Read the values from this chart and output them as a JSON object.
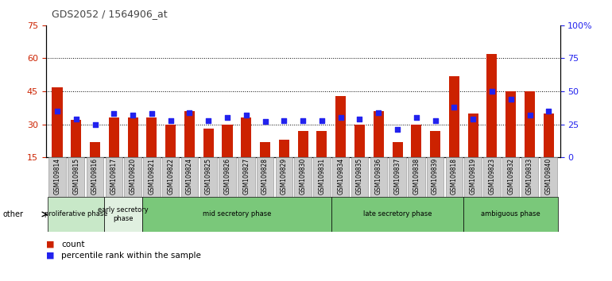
{
  "title": "GDS2052 / 1564906_at",
  "samples": [
    "GSM109814",
    "GSM109815",
    "GSM109816",
    "GSM109817",
    "GSM109820",
    "GSM109821",
    "GSM109822",
    "GSM109824",
    "GSM109825",
    "GSM109826",
    "GSM109827",
    "GSM109828",
    "GSM109829",
    "GSM109830",
    "GSM109831",
    "GSM109834",
    "GSM109835",
    "GSM109836",
    "GSM109837",
    "GSM109838",
    "GSM109839",
    "GSM109818",
    "GSM109819",
    "GSM109823",
    "GSM109832",
    "GSM109833",
    "GSM109840"
  ],
  "count": [
    47,
    32,
    22,
    33,
    33,
    33,
    30,
    36,
    28,
    30,
    33,
    22,
    23,
    27,
    27,
    43,
    30,
    36,
    22,
    30,
    27,
    52,
    35,
    62,
    45,
    45,
    35
  ],
  "percentile": [
    35,
    29,
    25,
    33,
    32,
    33,
    28,
    34,
    28,
    30,
    32,
    27,
    28,
    28,
    28,
    30,
    29,
    34,
    21,
    30,
    28,
    38,
    29,
    50,
    44,
    32,
    35
  ],
  "phases": [
    {
      "label": "proliferative phase",
      "start": 0,
      "end": 3,
      "color": "#c8e8c8"
    },
    {
      "label": "early secretory\nphase",
      "start": 3,
      "end": 5,
      "color": "#e0f0e0"
    },
    {
      "label": "mid secretory phase",
      "start": 5,
      "end": 15,
      "color": "#7ac87a"
    },
    {
      "label": "late secretory phase",
      "start": 15,
      "end": 22,
      "color": "#7ac87a"
    },
    {
      "label": "ambiguous phase",
      "start": 22,
      "end": 27,
      "color": "#7ac87a"
    }
  ],
  "ylim_left": [
    15,
    75
  ],
  "ylim_right": [
    0,
    100
  ],
  "yticks_left": [
    15,
    30,
    45,
    60,
    75
  ],
  "yticks_right": [
    0,
    25,
    50,
    75,
    100
  ],
  "bar_color": "#cc2200",
  "dot_color": "#2222ee",
  "grid_color": "#000000",
  "title_color": "#444444",
  "left_tick_color": "#cc2200",
  "right_tick_color": "#2222ee",
  "bg_color": "#ffffff",
  "legend_count_color": "#cc2200",
  "legend_dot_color": "#2222ee",
  "bar_width": 0.55,
  "dot_size": 20
}
